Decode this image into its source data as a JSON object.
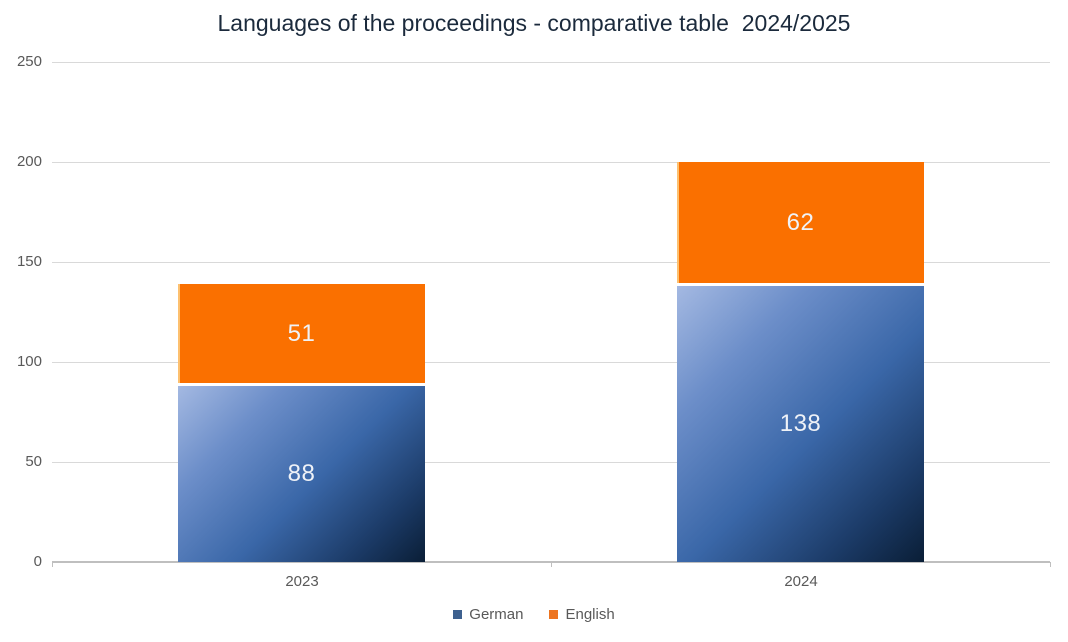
{
  "title": "Languages of the proceedings - comparative table  2024/2025",
  "chart_data": {
    "type": "bar",
    "stacked": true,
    "title": "Languages of the proceedings - comparative table  2024/2025",
    "categories": [
      "2023",
      "2024"
    ],
    "series": [
      {
        "name": "German",
        "values": [
          88,
          138
        ],
        "legend_color": "#3e618f",
        "fill_gradient": [
          "#a4b9e2",
          "#3a67a8",
          "#0a1e36"
        ]
      },
      {
        "name": "English",
        "values": [
          51,
          62
        ],
        "legend_color": "#ed7420",
        "fill": "#fa7000"
      }
    ],
    "totals": [
      139,
      200
    ],
    "xlabel": "",
    "ylabel": "",
    "ylim": [
      0,
      250
    ],
    "yticks": [
      0,
      50,
      100,
      150,
      200,
      250
    ],
    "grid": true,
    "legend_position": "bottom",
    "data_labels": true
  },
  "colors": {
    "background": "#ffffff",
    "title_text": "#1b2a3c",
    "axis_text": "#595959",
    "gridline": "#d9d9d9",
    "baseline": "#bfbfbf",
    "german_fill_dark": "#0a1e36",
    "german_fill_light": "#a4b9e2",
    "english_fill": "#fa7000",
    "data_label_text": "#eff2f7"
  }
}
